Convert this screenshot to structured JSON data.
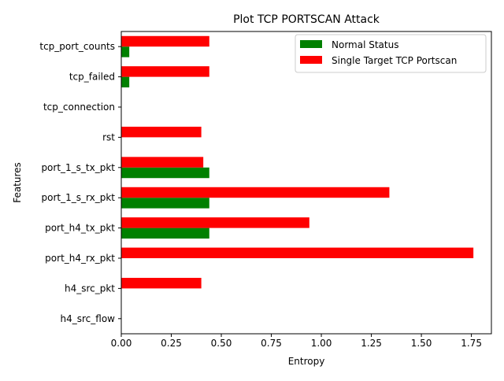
{
  "chart_data": {
    "type": "bar",
    "orientation": "horizontal",
    "title": "Plot TCP PORTSCAN Attack",
    "xlabel": "Entropy",
    "ylabel": "Features",
    "xlim": [
      0,
      1.85
    ],
    "xticks": [
      0.0,
      0.25,
      0.5,
      0.75,
      1.0,
      1.25,
      1.5,
      1.75
    ],
    "xtick_labels": [
      "0.00",
      "0.25",
      "0.50",
      "0.75",
      "1.00",
      "1.25",
      "1.50",
      "1.75"
    ],
    "categories": [
      "h4_src_flow",
      "h4_src_pkt",
      "port_h4_rx_pkt",
      "port_h4_tx_pkt",
      "port_1_s_rx_pkt",
      "port_1_s_tx_pkt",
      "rst",
      "tcp_connection",
      "tcp_failed",
      "tcp_port_counts"
    ],
    "series": [
      {
        "name": "Normal Status",
        "color": "#008000",
        "values": [
          0,
          0,
          0,
          0.44,
          0.44,
          0.44,
          0,
          0,
          0.04,
          0.04
        ]
      },
      {
        "name": "Single Target TCP Portscan",
        "color": "#ff0000",
        "values": [
          0,
          0.4,
          1.76,
          0.94,
          1.34,
          0.41,
          0.4,
          0,
          0.44,
          0.44
        ]
      }
    ],
    "legend_position": "top-right",
    "grid": false
  }
}
